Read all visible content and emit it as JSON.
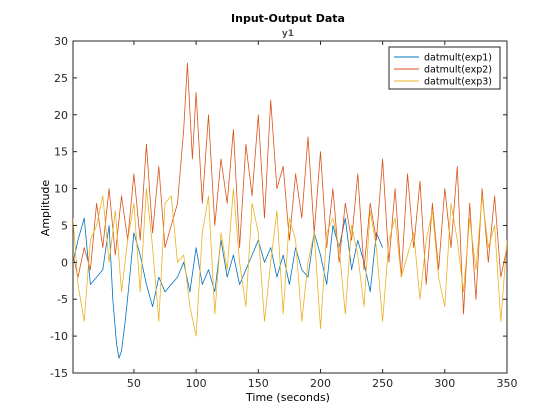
{
  "chart_data": {
    "type": "line",
    "title": "Input-Output Data",
    "subtitle": "y1",
    "xlabel": "Time (seconds)",
    "ylabel": "Amplitude",
    "xlim": [
      1,
      350
    ],
    "ylim": [
      -15,
      30
    ],
    "xticks": [
      50,
      100,
      150,
      200,
      250,
      300,
      350
    ],
    "yticks": [
      -15,
      -10,
      -5,
      0,
      5,
      10,
      15,
      20,
      25,
      30
    ],
    "xtick_labels": [
      "50",
      "100",
      "150",
      "200",
      "250",
      "300",
      "350"
    ],
    "ytick_labels": [
      "-15",
      "-10",
      "-5",
      "0",
      "5",
      "10",
      "15",
      "20",
      "25",
      "30"
    ],
    "grid": false,
    "legend_location": "top-right",
    "series": [
      {
        "name": "datmult(exp1)",
        "color": "#0072BD",
        "x": [
          1,
          5,
          10,
          15,
          20,
          25,
          30,
          33,
          36,
          38,
          40,
          43,
          46,
          50,
          55,
          60,
          65,
          70,
          75,
          80,
          85,
          90,
          95,
          100,
          105,
          110,
          115,
          120,
          125,
          130,
          135,
          140,
          145,
          150,
          155,
          160,
          165,
          170,
          175,
          180,
          185,
          190,
          195,
          200,
          205,
          210,
          215,
          220,
          225,
          230,
          235,
          240,
          245,
          250
        ],
        "y": [
          0,
          3,
          6,
          -3,
          -2,
          -1,
          5,
          -5,
          -11,
          -13,
          -12,
          -8,
          -3,
          4,
          1,
          -3,
          -6,
          -2,
          -4,
          -3,
          -2,
          0,
          -4,
          2,
          -3,
          -1,
          -4,
          3,
          -2,
          1,
          -3,
          -1,
          1,
          3,
          0,
          2,
          -2,
          1,
          -3,
          2,
          -1,
          -2,
          4,
          1,
          -3,
          5,
          2,
          6,
          -1,
          3,
          0,
          -4,
          4,
          2
        ]
      },
      {
        "name": "datmult(exp2)",
        "color": "#D95319",
        "x": [
          1,
          5,
          10,
          15,
          20,
          25,
          30,
          35,
          40,
          45,
          50,
          55,
          60,
          65,
          70,
          75,
          80,
          85,
          90,
          93,
          97,
          100,
          105,
          110,
          115,
          120,
          125,
          130,
          135,
          140,
          145,
          150,
          155,
          160,
          165,
          170,
          175,
          180,
          185,
          190,
          195,
          200,
          205,
          210,
          215,
          220,
          225,
          230,
          235,
          240,
          245,
          250,
          255,
          260,
          265,
          270,
          275,
          280,
          285,
          290,
          295,
          300,
          305,
          310,
          315,
          320,
          325,
          330,
          335,
          340,
          345,
          350
        ],
        "y": [
          1,
          -2,
          2,
          -1,
          8,
          2,
          10,
          1,
          9,
          3,
          12,
          3,
          16,
          4,
          13,
          2,
          5,
          8,
          18,
          27,
          14,
          23,
          8,
          20,
          5,
          14,
          8,
          18,
          2,
          16,
          9,
          20,
          6,
          22,
          10,
          13,
          3,
          12,
          6,
          17,
          4,
          15,
          2,
          10,
          0,
          8,
          3,
          12,
          -1,
          8,
          3,
          14,
          0,
          10,
          -2,
          12,
          2,
          11,
          -3,
          8,
          -1,
          10,
          2,
          13,
          -7,
          8,
          -5,
          10,
          0,
          9,
          -2,
          2
        ]
      },
      {
        "name": "datmult(exp3)",
        "color": "#EDB120",
        "x": [
          1,
          5,
          10,
          15,
          20,
          25,
          30,
          35,
          40,
          45,
          50,
          55,
          60,
          65,
          70,
          75,
          80,
          85,
          90,
          95,
          100,
          105,
          110,
          115,
          120,
          125,
          130,
          135,
          140,
          145,
          150,
          155,
          160,
          165,
          170,
          175,
          180,
          185,
          190,
          195,
          200,
          205,
          210,
          215,
          220,
          225,
          230,
          235,
          240,
          245,
          250,
          255,
          260,
          265,
          270,
          275,
          280,
          285,
          290,
          295,
          300,
          305,
          310,
          315,
          320,
          325,
          330,
          335,
          340,
          345,
          350
        ],
        "y": [
          6,
          -3,
          -8,
          3,
          5,
          9,
          0,
          7,
          -4,
          3,
          8,
          -4,
          10,
          2,
          -8,
          8,
          9,
          0,
          1,
          -6,
          -10,
          4,
          9,
          -7,
          4,
          -1,
          10,
          0,
          -6,
          8,
          4,
          -8,
          0,
          7,
          -7,
          6,
          3,
          -8,
          0,
          4,
          -9,
          4,
          6,
          2,
          -7,
          5,
          1,
          -6,
          7,
          2,
          -8,
          3,
          6,
          -2,
          1,
          4,
          -5,
          3,
          7,
          -2,
          -6,
          8,
          3,
          -4,
          6,
          -1,
          9,
          2,
          5,
          -8,
          3
        ]
      }
    ]
  }
}
